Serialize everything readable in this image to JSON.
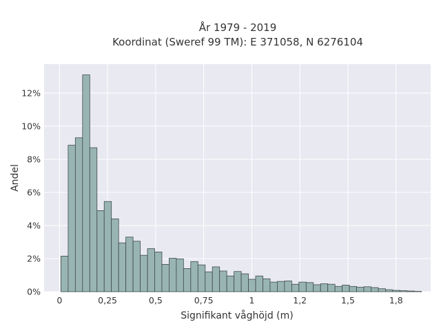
{
  "chart_data": {
    "type": "bar",
    "title": "År 1979 - 2019",
    "subtitle": "Koordinat (Sweref 99 TM): E 371058, N 6276104",
    "xlabel": "Signifikant våghöjd (m)",
    "ylabel": "Andel",
    "xlim": [
      -0.08,
      1.93
    ],
    "ylim": [
      0,
      13.75
    ],
    "x_ticks": [
      {
        "value": 0,
        "label": "0"
      },
      {
        "value": 0.25,
        "label": "0,25"
      },
      {
        "value": 0.5,
        "label": "0,5"
      },
      {
        "value": 0.75,
        "label": "0,75"
      },
      {
        "value": 1,
        "label": "1"
      },
      {
        "value": 1.25,
        "label": "1,2"
      },
      {
        "value": 1.5,
        "label": "1,5"
      },
      {
        "value": 1.75,
        "label": "1,8"
      }
    ],
    "y_ticks": [
      {
        "value": 0,
        "label": "0%"
      },
      {
        "value": 2,
        "label": "2%"
      },
      {
        "value": 4,
        "label": "4%"
      },
      {
        "value": 6,
        "label": "6%"
      },
      {
        "value": 8,
        "label": "8%"
      },
      {
        "value": 10,
        "label": "10%"
      },
      {
        "value": 12,
        "label": "12%"
      }
    ],
    "bin_width": 0.0375,
    "bin_start": 0.0075,
    "values": [
      2.15,
      8.85,
      9.3,
      13.1,
      8.7,
      4.9,
      5.45,
      4.4,
      2.95,
      3.3,
      3.05,
      2.2,
      2.6,
      2.4,
      1.65,
      2.02,
      1.98,
      1.4,
      1.82,
      1.62,
      1.2,
      1.5,
      1.25,
      0.95,
      1.22,
      1.08,
      0.75,
      0.95,
      0.78,
      0.58,
      0.62,
      0.65,
      0.45,
      0.58,
      0.55,
      0.42,
      0.48,
      0.45,
      0.32,
      0.4,
      0.32,
      0.27,
      0.3,
      0.25,
      0.18,
      0.12,
      0.08,
      0.06,
      0.04,
      0.02
    ],
    "grid": true,
    "colors": {
      "bar_fill": "#99b5b3",
      "bar_edge": "#3d4a49",
      "plot_bg": "#e9e9f1",
      "grid": "#ffffff"
    }
  }
}
